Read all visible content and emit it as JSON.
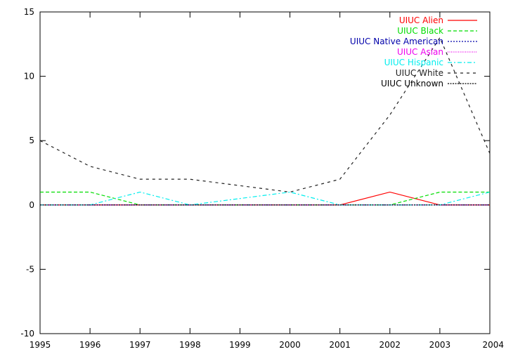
{
  "chart_data": {
    "type": "line",
    "title": "",
    "xlabel": "",
    "ylabel": "",
    "x": [
      1995,
      1996,
      1997,
      1998,
      1999,
      2000,
      2001,
      2002,
      2003,
      2004
    ],
    "xlim": [
      1995,
      2004
    ],
    "ylim": [
      -10,
      15
    ],
    "xticks": [
      "1995",
      "1996",
      "1997",
      "1998",
      "1999",
      "2000",
      "2001",
      "2002",
      "2003",
      "2004"
    ],
    "yticks": [
      "-10",
      "-5",
      "0",
      "5",
      "10",
      "15"
    ],
    "grid": false,
    "legend_position": "top-right",
    "series": [
      {
        "name": "UIUC Alien",
        "color": "#ff0000",
        "dash": "solid",
        "values": [
          0,
          0,
          0,
          0,
          0,
          0,
          0,
          1,
          0,
          0
        ]
      },
      {
        "name": "UIUC Black",
        "color": "#00dd00",
        "dash": "dashed",
        "values": [
          1,
          1,
          0,
          0,
          0,
          0,
          0,
          0,
          1,
          1
        ]
      },
      {
        "name": "UIUC Native American",
        "color": "#0000aa",
        "dash": "dotted",
        "values": [
          0,
          0,
          0,
          0,
          0,
          0,
          0,
          0,
          0,
          0
        ]
      },
      {
        "name": "UIUC Asian",
        "color": "#ee00ee",
        "dash": "fine-dotted",
        "values": [
          0,
          0,
          0,
          0,
          0,
          0,
          0,
          0,
          0,
          0
        ]
      },
      {
        "name": "UIUC Hispanic",
        "color": "#00eeee",
        "dash": "dash-dot",
        "values": [
          0,
          0,
          1,
          0,
          0.5,
          1,
          0,
          0,
          0,
          1
        ]
      },
      {
        "name": "UIUC White",
        "color": "#222222",
        "dash": "dashed-sparse",
        "values": [
          5,
          3,
          2,
          2,
          1.5,
          1,
          2,
          7,
          13,
          4
        ]
      },
      {
        "name": "UIUC Unknown",
        "color": "#000000",
        "dash": "dotted-dense",
        "values": [
          0,
          0,
          0,
          0,
          0,
          0,
          0,
          0,
          0,
          0
        ]
      }
    ]
  }
}
